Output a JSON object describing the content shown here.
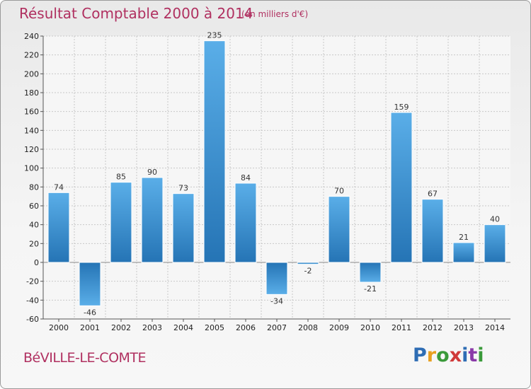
{
  "title": "Résultat Comptable 2000 à 2014",
  "subtitle": "(en milliers d'€)",
  "town": "BéVILLE-LE-COMTE",
  "brand": [
    "P",
    "r",
    "o",
    "x",
    "i",
    "t",
    "i"
  ],
  "colors": {
    "title": "#b03060",
    "bar_top": "#5aaee8",
    "bar_bottom": "#2574b5",
    "grid": "#c8c8c8"
  },
  "chart_data": {
    "type": "bar",
    "categories": [
      "2000",
      "2001",
      "2002",
      "2003",
      "2004",
      "2005",
      "2006",
      "2007",
      "2008",
      "2009",
      "2010",
      "2011",
      "2012",
      "2013",
      "2014"
    ],
    "values": [
      74,
      -46,
      85,
      90,
      73,
      235,
      84,
      -34,
      -2,
      70,
      -21,
      159,
      67,
      21,
      40
    ],
    "labels": [
      "74",
      "-46",
      "85",
      "90",
      "73",
      "235",
      "84",
      "-34",
      "-2",
      "70",
      "-21",
      "159",
      "67",
      "21",
      "40"
    ],
    "ylim": [
      -60,
      240
    ],
    "yticks": [
      240,
      220,
      200,
      180,
      160,
      140,
      120,
      100,
      80,
      60,
      40,
      20,
      0,
      -20,
      -40,
      -60
    ],
    "grid": true
  }
}
